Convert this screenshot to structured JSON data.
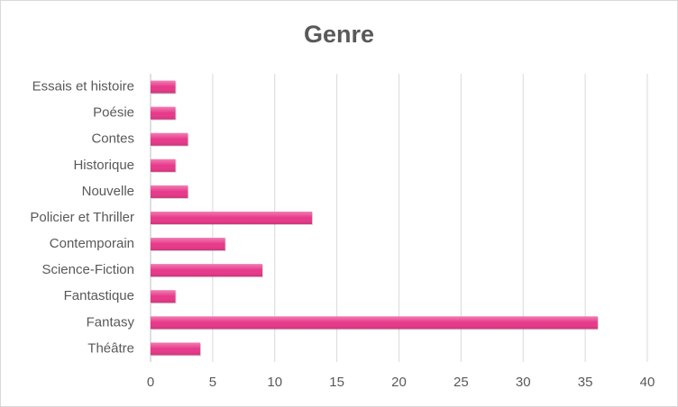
{
  "chart_data": {
    "type": "bar",
    "orientation": "horizontal",
    "title": "Genre",
    "categories": [
      "Essais et histoire",
      "Poésie",
      "Contes",
      "Historique",
      "Nouvelle",
      "Policier et Thriller",
      "Contemporain",
      "Science-Fiction",
      "Fantastique",
      "Fantasy",
      "Théâtre"
    ],
    "values": [
      2,
      2,
      3,
      2,
      3,
      13,
      6,
      9,
      2,
      36,
      4
    ],
    "color": "#e8388a",
    "xlim": [
      0,
      40
    ],
    "xticks": [
      0,
      5,
      10,
      15,
      20,
      25,
      30,
      35,
      40
    ],
    "grid": true
  }
}
